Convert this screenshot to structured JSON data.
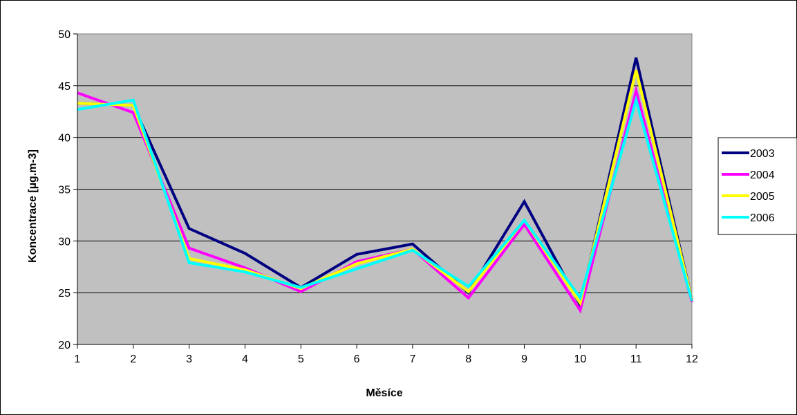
{
  "chart_data": {
    "type": "line",
    "title": "",
    "xlabel": "Měsíce",
    "ylabel": "Koncentrace [µg.m-3]",
    "x": [
      1,
      2,
      3,
      4,
      5,
      6,
      7,
      8,
      9,
      10,
      11,
      12
    ],
    "xticks": [
      "1",
      "2",
      "3",
      "4",
      "5",
      "6",
      "7",
      "8",
      "9",
      "10",
      "11",
      "12"
    ],
    "ylim": [
      20,
      50
    ],
    "yticks": [
      "20",
      "25",
      "30",
      "35",
      "40",
      "45",
      "50"
    ],
    "grid": "horizontal",
    "plot_background": "#c0c0c0",
    "legend_position": "right",
    "series": [
      {
        "name": "2003",
        "color": "#000080",
        "values": [
          43.3,
          43.1,
          31.2,
          28.8,
          25.5,
          28.7,
          29.7,
          25.0,
          33.8,
          23.8,
          47.7,
          24.3
        ]
      },
      {
        "name": "2004",
        "color": "#ff00ff",
        "values": [
          44.3,
          42.4,
          29.3,
          27.4,
          25.1,
          28.0,
          29.2,
          24.5,
          31.6,
          23.3,
          44.5,
          24.1
        ]
      },
      {
        "name": "2005",
        "color": "#ffff00",
        "values": [
          43.3,
          43.1,
          28.3,
          27.2,
          25.4,
          27.8,
          29.2,
          25.1,
          32.0,
          24.0,
          46.5,
          24.3
        ]
      },
      {
        "name": "2006",
        "color": "#00ffff",
        "values": [
          42.7,
          43.6,
          27.9,
          27.0,
          25.5,
          27.3,
          29.1,
          25.6,
          32.0,
          24.5,
          43.6,
          24.2
        ]
      }
    ]
  }
}
